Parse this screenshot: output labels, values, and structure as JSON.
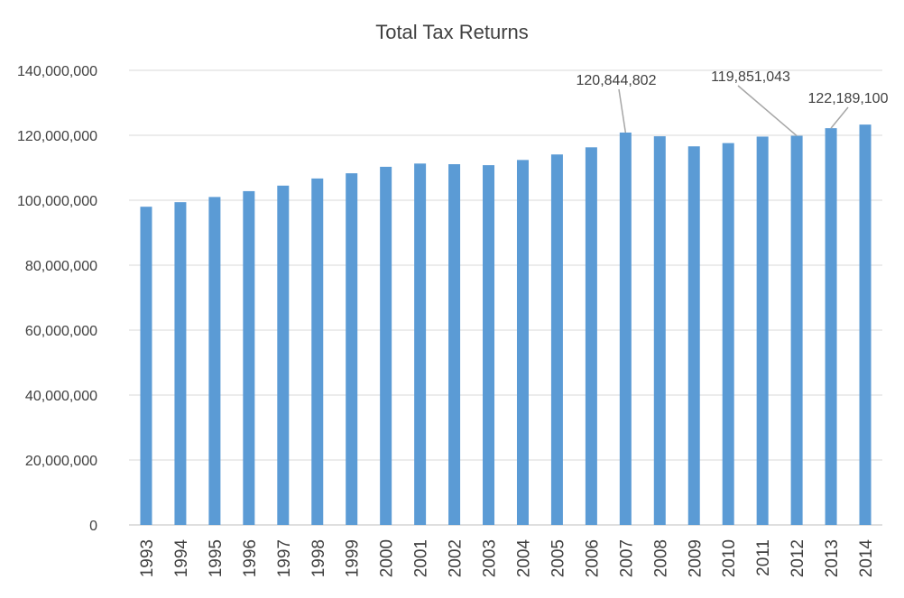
{
  "chart_data": {
    "type": "bar",
    "title": "Total Tax Returns",
    "xlabel": "",
    "ylabel": "",
    "ylim": [
      0,
      140000000
    ],
    "y_ticks": [
      0,
      20000000,
      40000000,
      60000000,
      80000000,
      100000000,
      120000000,
      140000000
    ],
    "y_tick_labels": [
      "0",
      "20,000,000",
      "40,000,000",
      "60,000,000",
      "80,000,000",
      "100,000,000",
      "120,000,000",
      "140,000,000"
    ],
    "grid": true,
    "legend": "none",
    "bar_color": "#5B9BD5",
    "categories": [
      "1993",
      "1994",
      "1995",
      "1996",
      "1997",
      "1998",
      "1999",
      "2000",
      "2001",
      "2002",
      "2003",
      "2004",
      "2005",
      "2006",
      "2007",
      "2008",
      "2009",
      "2010",
      "2011",
      "2012",
      "2013",
      "2014"
    ],
    "values": [
      98000000,
      99400000,
      101000000,
      102800000,
      104500000,
      106700000,
      108300000,
      110300000,
      111300000,
      111100000,
      110800000,
      112400000,
      114100000,
      116300000,
      120844802,
      119700000,
      116600000,
      117600000,
      119600000,
      119851043,
      122189100,
      123300000
    ],
    "annotations": [
      {
        "category": "2007",
        "text": "120,844,802"
      },
      {
        "category": "2012",
        "text": "119,851,043"
      },
      {
        "category": "2013",
        "text": "122,189,100"
      }
    ]
  }
}
